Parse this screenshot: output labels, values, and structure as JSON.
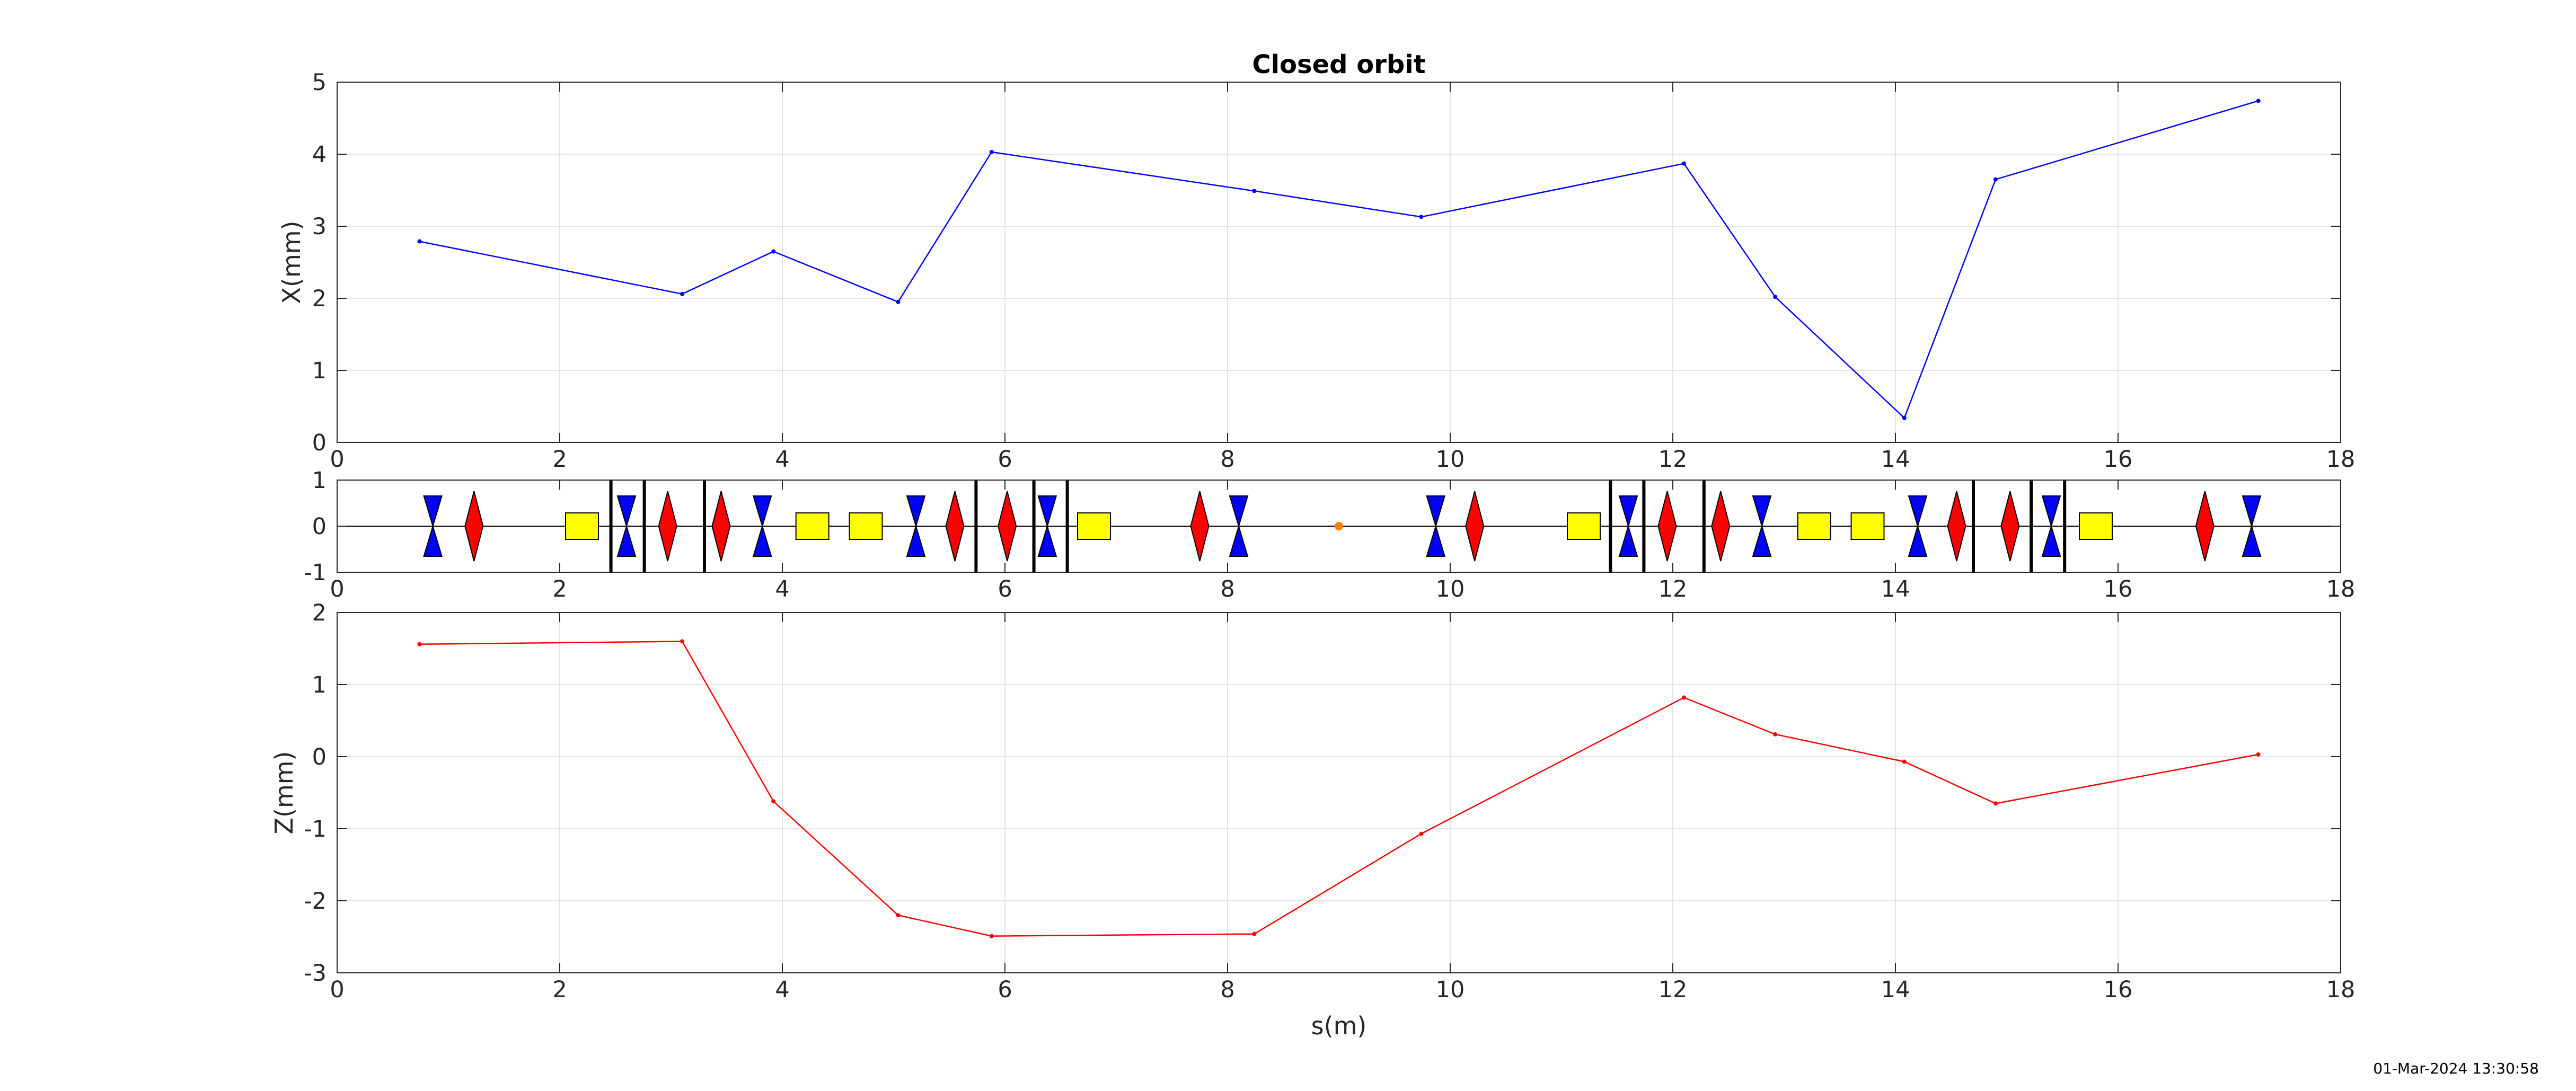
{
  "chart_data": [
    {
      "type": "line",
      "title": "Closed orbit",
      "xlabel": "",
      "ylabel": "X(mm)",
      "xlim": [
        0,
        18
      ],
      "ylim": [
        0,
        5
      ],
      "xticks": [
        "0",
        "2",
        "4",
        "6",
        "8",
        "10",
        "12",
        "14",
        "16",
        "18"
      ],
      "yticks": [
        "0",
        "1",
        "2",
        "3",
        "4",
        "5"
      ],
      "grid": true,
      "series": [
        {
          "color": "#0000ff",
          "x": [
            0.74,
            3.1,
            3.92,
            5.04,
            5.88,
            8.24,
            9.74,
            12.1,
            12.92,
            14.08,
            14.9,
            17.26
          ],
          "y": [
            2.79,
            2.06,
            2.65,
            1.95,
            4.03,
            3.49,
            3.13,
            3.87,
            2.02,
            0.34,
            3.65,
            4.74
          ]
        }
      ]
    },
    {
      "type": "lattice",
      "xlim": [
        0,
        18
      ],
      "ylim": [
        -1,
        1
      ],
      "xticks": [
        "0",
        "2",
        "4",
        "6",
        "8",
        "10",
        "12",
        "14",
        "16",
        "18"
      ],
      "yticks": [
        "-1",
        "0",
        "1"
      ],
      "quad_focusing_color": "#0000ff",
      "quad_defocusing_color": "#ff0000",
      "sextupole_color": "#ffff00",
      "marker_color": "#ff8000",
      "quads_focusing": [
        0.86,
        2.6,
        3.82,
        5.2,
        6.38,
        8.1,
        9.87,
        11.6,
        12.8,
        14.2,
        15.4,
        17.2
      ],
      "quads_defocusing": [
        1.23,
        2.97,
        3.45,
        5.55,
        6.02,
        7.75,
        10.22,
        11.95,
        12.43,
        14.55,
        15.03,
        16.78
      ],
      "sextupoles": [
        2.2,
        4.27,
        4.75,
        6.8,
        11.2,
        13.27,
        13.75,
        15.8
      ],
      "bends": [
        2.46,
        2.76,
        3.3,
        5.74,
        6.26,
        6.56,
        11.44,
        11.74,
        12.28,
        14.7,
        15.22,
        15.52
      ],
      "markers": [
        9.0
      ]
    },
    {
      "type": "line",
      "title": "",
      "xlabel": "s(m)",
      "ylabel": "Z(mm)",
      "xlim": [
        0,
        18
      ],
      "ylim": [
        -3,
        2
      ],
      "xticks": [
        "0",
        "2",
        "4",
        "6",
        "8",
        "10",
        "12",
        "14",
        "16",
        "18"
      ],
      "yticks": [
        "-3",
        "-2",
        "-1",
        "0",
        "1",
        "2"
      ],
      "grid": true,
      "series": [
        {
          "color": "#ff0000",
          "x": [
            0.74,
            3.1,
            3.92,
            5.04,
            5.88,
            8.24,
            9.74,
            12.1,
            12.92,
            14.08,
            14.9,
            17.26
          ],
          "y": [
            1.56,
            1.6,
            -0.62,
            -2.2,
            -2.49,
            -2.46,
            -1.07,
            0.82,
            0.31,
            -0.07,
            -0.65,
            0.03
          ]
        }
      ]
    }
  ],
  "timestamp": "01-Mar-2024 13:30:58"
}
